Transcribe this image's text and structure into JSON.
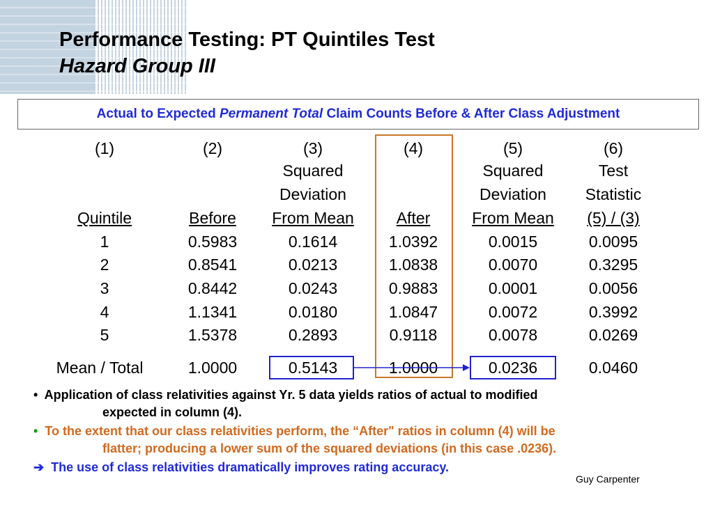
{
  "header": {
    "title": "Performance Testing: PT Quintiles Test",
    "subtitle": "Hazard Group III"
  },
  "caption": {
    "part1": "Actual to Expected ",
    "italic": "Permanent Total",
    "part2": " Claim Counts Before & After Class Adjustment"
  },
  "table": {
    "column_numbers": [
      "(1)",
      "(2)",
      "(3)",
      "(4)",
      "(5)",
      "(6)"
    ],
    "header_line1": [
      "",
      "",
      "Squared",
      "",
      "Squared",
      "Test"
    ],
    "header_line2": [
      "",
      "",
      "Deviation",
      "",
      "Deviation",
      "Statistic"
    ],
    "header_line3": [
      "Quintile",
      "Before",
      "From Mean",
      "After",
      "From Mean",
      "(5) / (3)"
    ],
    "rows": [
      [
        "1",
        "0.5983",
        "0.1614",
        "1.0392",
        "0.0015",
        "0.0095"
      ],
      [
        "2",
        "0.8541",
        "0.0213",
        "1.0838",
        "0.0070",
        "0.3295"
      ],
      [
        "3",
        "0.8442",
        "0.0243",
        "0.9883",
        "0.0001",
        "0.0056"
      ],
      [
        "4",
        "1.1341",
        "0.0180",
        "1.0847",
        "0.0072",
        "0.3992"
      ],
      [
        "5",
        "1.5378",
        "0.2893",
        "0.9118",
        "0.0078",
        "0.0269"
      ]
    ],
    "total_row": [
      "Mean / Total",
      "1.0000",
      "0.5143",
      "1.0000",
      "0.0236",
      "0.0460"
    ]
  },
  "colors": {
    "caption_blue": "#1f2bd6",
    "highlight_orange": "#c8782a",
    "highlight_blue": "#2222cc",
    "bullet_orange": "#d2691e",
    "corner_block": "#c4d3e0"
  },
  "bullets": [
    {
      "marker": "•",
      "line1": "Application of class relativities against Yr. 5 data yields ratios of actual to modified",
      "line2": "expected in column (4)."
    },
    {
      "marker": "•",
      "line1": "To the extent that our class relativities perform, the “After\" ratios in column (4) will be",
      "line2": "flatter; producing a lower sum of the squared deviations (in this case .0236)."
    },
    {
      "marker": "➔",
      "line1": "The use of class relativities dramatically improves rating accuracy."
    }
  ],
  "footer": {
    "author": "Guy Carpenter"
  }
}
